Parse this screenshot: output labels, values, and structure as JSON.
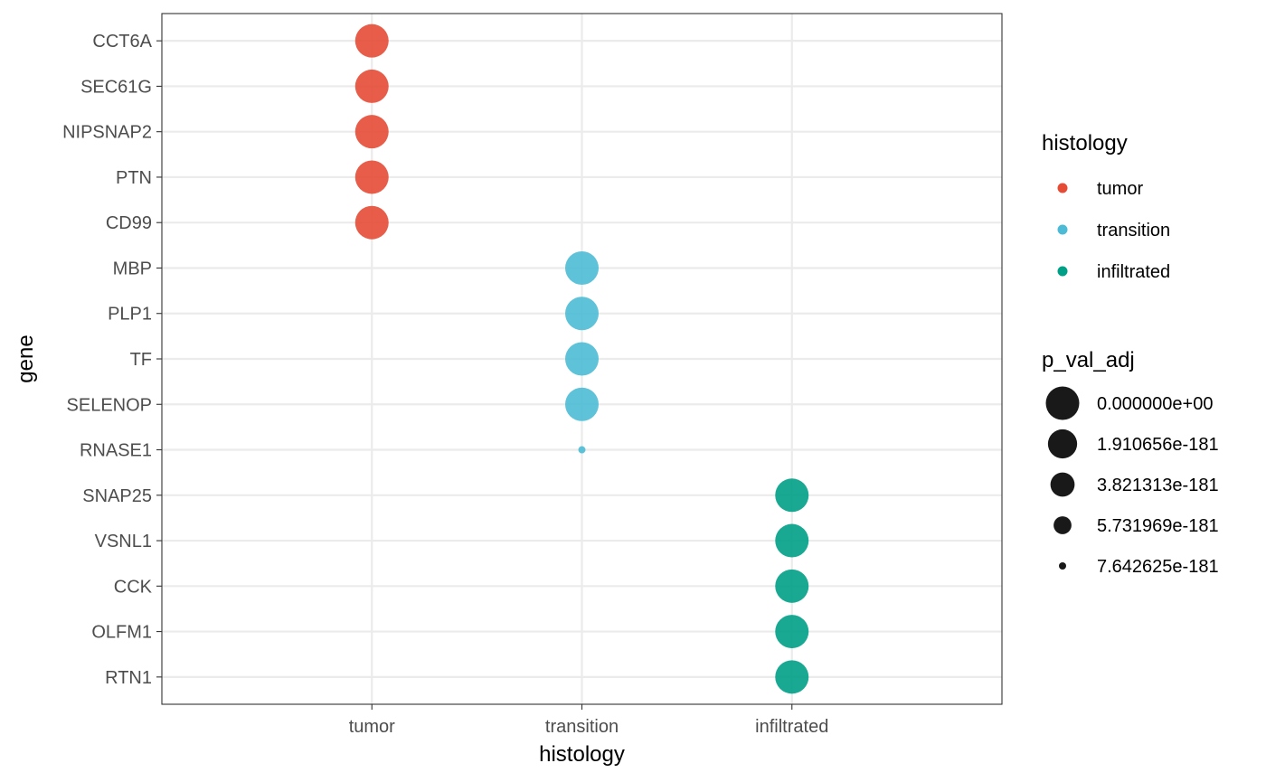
{
  "chart_data": {
    "type": "scatter",
    "title": "",
    "xlabel": "histology",
    "ylabel": "gene",
    "grid": true,
    "legend_position": "right",
    "categories_x": [
      "tumor",
      "transition",
      "infiltrated"
    ],
    "categories_y": [
      "CCT6A",
      "SEC61G",
      "NIPSNAP2",
      "PTN",
      "CD99",
      "MBP",
      "PLP1",
      "TF",
      "SELENOP",
      "RNASE1",
      "SNAP25",
      "VSNL1",
      "CCK",
      "OLFM1",
      "RTN1"
    ],
    "colors": {
      "tumor": "#E64B35",
      "transition": "#4DBBD5",
      "infiltrated": "#00A087"
    },
    "points": [
      {
        "gene": "CCT6A",
        "histology": "tumor",
        "p_val_adj": 0
      },
      {
        "gene": "SEC61G",
        "histology": "tumor",
        "p_val_adj": 0
      },
      {
        "gene": "NIPSNAP2",
        "histology": "tumor",
        "p_val_adj": 0
      },
      {
        "gene": "PTN",
        "histology": "tumor",
        "p_val_adj": 0
      },
      {
        "gene": "CD99",
        "histology": "tumor",
        "p_val_adj": 0
      },
      {
        "gene": "MBP",
        "histology": "transition",
        "p_val_adj": 0
      },
      {
        "gene": "PLP1",
        "histology": "transition",
        "p_val_adj": 0
      },
      {
        "gene": "TF",
        "histology": "transition",
        "p_val_adj": 0
      },
      {
        "gene": "SELENOP",
        "histology": "transition",
        "p_val_adj": 0
      },
      {
        "gene": "RNASE1",
        "histology": "transition",
        "p_val_adj": 7.642625e-181
      },
      {
        "gene": "SNAP25",
        "histology": "infiltrated",
        "p_val_adj": 0
      },
      {
        "gene": "VSNL1",
        "histology": "infiltrated",
        "p_val_adj": 0
      },
      {
        "gene": "CCK",
        "histology": "infiltrated",
        "p_val_adj": 0
      },
      {
        "gene": "OLFM1",
        "histology": "infiltrated",
        "p_val_adj": 0
      },
      {
        "gene": "RTN1",
        "histology": "infiltrated",
        "p_val_adj": 0
      }
    ],
    "legend_color": {
      "title": "histology",
      "entries": [
        "tumor",
        "transition",
        "infiltrated"
      ]
    },
    "legend_size": {
      "title": "p_val_adj",
      "entries": [
        {
          "label": "0.000000e+00",
          "value": 0
        },
        {
          "label": "1.910656e-181",
          "value": 1.910656e-181
        },
        {
          "label": "3.821313e-181",
          "value": 3.821313e-181
        },
        {
          "label": "5.731969e-181",
          "value": 5.731969e-181
        },
        {
          "label": "7.642625e-181",
          "value": 7.642625e-181
        }
      ]
    }
  }
}
